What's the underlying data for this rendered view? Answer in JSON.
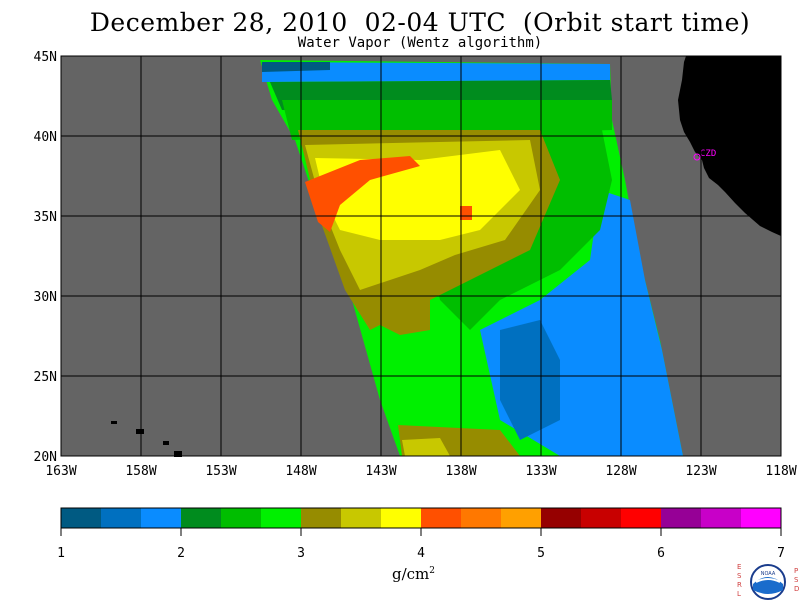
{
  "title": "December 28, 2010  02-04 UTC  (Orbit start time)",
  "subtitle": "Water Vapor (Wentz algorithm)",
  "map": {
    "lon_ticks": [
      "163W",
      "158W",
      "153W",
      "148W",
      "143W",
      "138W",
      "133W",
      "128W",
      "123W",
      "118W"
    ],
    "lat_ticks": [
      "45N",
      "40N",
      "35N",
      "30N",
      "25N",
      "20N"
    ],
    "station_label": "CZD",
    "colors": {
      "missing": "#646464",
      "land": "#000000",
      "grid": "#000000",
      "station": "#ff00ff"
    }
  },
  "colorbar": {
    "tick_labels": [
      "1",
      "2",
      "3",
      "4",
      "5",
      "6",
      "7"
    ],
    "units": "g/cm",
    "units_superscript": "2",
    "colors": [
      "#005a82",
      "#0070c0",
      "#0a8cff",
      "#008c1e",
      "#00be00",
      "#00f000",
      "#968c00",
      "#c8c800",
      "#ffff00",
      "#ff5000",
      "#ff7800",
      "#ffa000",
      "#960000",
      "#c80000",
      "#ff0000",
      "#960096",
      "#c800c8",
      "#ff00ff"
    ]
  },
  "logo": {
    "left_letters": [
      "E",
      "S",
      "R",
      "L"
    ],
    "right_letters": [
      "P",
      "S",
      "D"
    ],
    "text": "NOAA"
  }
}
